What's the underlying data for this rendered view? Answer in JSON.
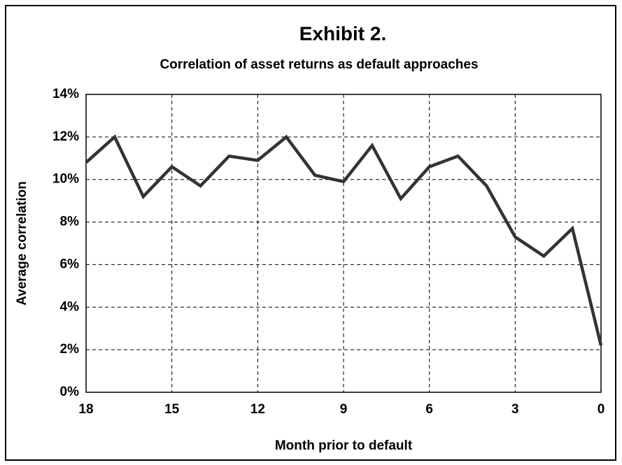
{
  "chart_data": {
    "type": "line",
    "title": "Exhibit 2.",
    "subtitle": "Correlation of asset returns as default approaches",
    "x_label": "Month prior to default",
    "y_label": "Average correlation",
    "x": [
      18,
      17,
      16,
      15,
      14,
      13,
      12,
      11,
      10,
      9,
      8,
      7,
      6,
      5,
      4,
      3,
      2,
      1,
      0
    ],
    "values": [
      10.8,
      12.0,
      9.2,
      10.6,
      9.7,
      11.1,
      10.9,
      12.0,
      10.2,
      9.9,
      11.6,
      9.1,
      10.6,
      11.1,
      9.7,
      7.3,
      6.4,
      7.7,
      2.2
    ],
    "color": "#333333",
    "xlim": [
      18,
      0
    ],
    "xticks": [
      18,
      15,
      12,
      9,
      6,
      3,
      0
    ],
    "ylim": [
      0,
      14
    ],
    "yticks": [
      {
        "value": 0,
        "label": "0%"
      },
      {
        "value": 2,
        "label": "2%"
      },
      {
        "value": 4,
        "label": "4%"
      },
      {
        "value": 6,
        "label": "6%"
      },
      {
        "value": 8,
        "label": "8%"
      },
      {
        "value": 10,
        "label": "10%"
      },
      {
        "value": 12,
        "label": "12%"
      },
      {
        "value": 14,
        "label": "14%"
      }
    ],
    "grid": true
  }
}
